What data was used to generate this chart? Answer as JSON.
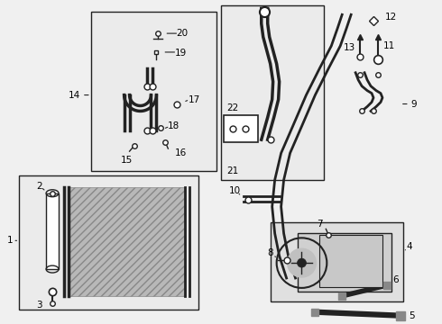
{
  "bg_color": "#f0f0f0",
  "line_color": "#222222",
  "box_color": "#e8e8e8",
  "text_color": "#000000",
  "fig_width": 4.9,
  "fig_height": 3.6,
  "dpi": 100
}
